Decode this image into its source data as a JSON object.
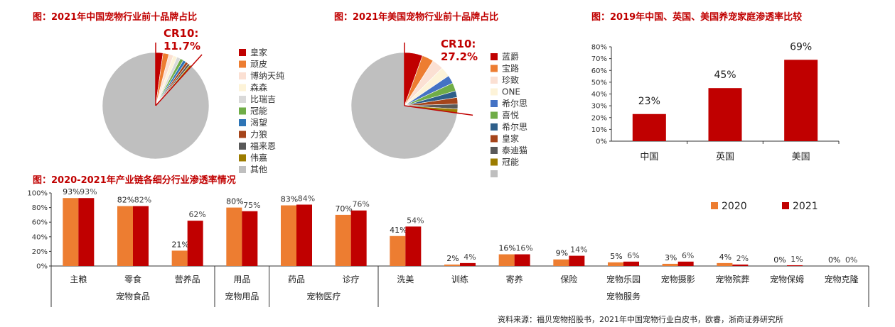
{
  "colors": {
    "red": "#c00000",
    "orange": "#ed7d31",
    "gray": "#bfbfbf"
  },
  "source": "资料来源：福贝宠物招股书，2021年中国宠物行业白皮书，欧睿，浙商证券研究所",
  "chart_data": [
    {
      "type": "pie",
      "title": "图：2021年中国宠物行业前十品牌占比",
      "annotation": "CR10:",
      "annotation_value": "11.7%",
      "labels": [
        "皇家",
        "顽皮",
        "博纳天纯",
        "森森",
        "比瑞吉",
        "冠能",
        "渴望",
        "力狼",
        "福来恩",
        "伟嘉",
        "其他"
      ],
      "values": [
        2.2,
        1.8,
        1.4,
        1.2,
        1.1,
        1.0,
        0.9,
        0.8,
        0.7,
        0.6,
        88.3
      ],
      "colors": [
        "#c00000",
        "#ed7d31",
        "#fbe0d3",
        "#fdf3d8",
        "#d9d9d9",
        "#70ad47",
        "#2e75b6",
        "#a5441a",
        "#595959",
        "#9c7c00",
        "#bfbfbf"
      ],
      "legend": "right"
    },
    {
      "type": "pie",
      "title": "图：2021年美国宠物行业前十品牌占比",
      "annotation": "CR10:",
      "annotation_value": "27.2%",
      "labels": [
        "蓝爵",
        "宝路",
        "珍致",
        "ONE",
        "希尔思",
        "喜悦",
        "希尔思",
        "皇家",
        "泰迪猫",
        "冠能",
        ""
      ],
      "values": [
        5.5,
        3.5,
        3.5,
        3.0,
        2.5,
        2.5,
        2.0,
        2.0,
        1.5,
        1.2,
        72.8
      ],
      "colors": [
        "#c00000",
        "#ed7d31",
        "#fbe0d3",
        "#fdf3d8",
        "#4472c4",
        "#70ad47",
        "#2e5f8a",
        "#a5441a",
        "#595959",
        "#9c7c00",
        "#bfbfbf"
      ],
      "legend": "right"
    },
    {
      "type": "bar",
      "title": "图：2019年中国、英国、美国养宠家庭渗透率比较",
      "categories": [
        "中国",
        "英国",
        "美国"
      ],
      "values": [
        23,
        45,
        69
      ],
      "value_labels": [
        "23%",
        "45%",
        "69%"
      ],
      "yticks": [
        "0%",
        "10%",
        "20%",
        "30%",
        "40%",
        "50%",
        "60%",
        "70%",
        "80%"
      ],
      "ylim": [
        0,
        80
      ],
      "grid": false
    },
    {
      "type": "bar",
      "title": "图：2020-2021年产业链各细分行业渗透率情况",
      "categories": [
        "主粮",
        "零食",
        "营养品",
        "用品",
        "药品",
        "诊疗",
        "洗美",
        "训练",
        "寄养",
        "保险",
        "宠物乐园",
        "宠物摄影",
        "宠物殡葬",
        "宠物保姆",
        "宠物克隆"
      ],
      "groups": [
        {
          "label": "宠物食品",
          "span": [
            0,
            2
          ]
        },
        {
          "label": "宠物用品",
          "span": [
            3,
            3
          ]
        },
        {
          "label": "宠物医疗",
          "span": [
            4,
            5
          ]
        },
        {
          "label": "宠物服务",
          "span": [
            6,
            14
          ]
        }
      ],
      "series": [
        {
          "name": "2020",
          "color": "#ed7d31",
          "values": [
            93,
            82,
            21,
            80,
            83,
            70,
            41,
            2,
            16,
            9,
            5,
            3,
            4,
            0,
            0
          ],
          "labels": [
            "93%",
            "82%",
            "21%",
            "80%",
            "83%",
            "70%",
            "41%",
            "2%",
            "16%",
            "9%",
            "5%",
            "3%",
            "4%",
            "0%",
            "0%"
          ]
        },
        {
          "name": "2021",
          "color": "#c00000",
          "values": [
            93,
            82,
            62,
            75,
            84,
            76,
            54,
            4,
            16,
            14,
            6,
            6,
            2,
            1,
            0
          ],
          "labels": [
            "93%",
            "82%",
            "62%",
            "75%",
            "84%",
            "76%",
            "54%",
            "4%",
            "16%",
            "14%",
            "6%",
            "6%",
            "2%",
            "1%",
            "0%"
          ]
        }
      ],
      "yticks": [
        "0%",
        "20%",
        "40%",
        "60%",
        "80%",
        "100%"
      ],
      "ylim": [
        0,
        100
      ],
      "legend": "top-right",
      "grid": false
    }
  ]
}
